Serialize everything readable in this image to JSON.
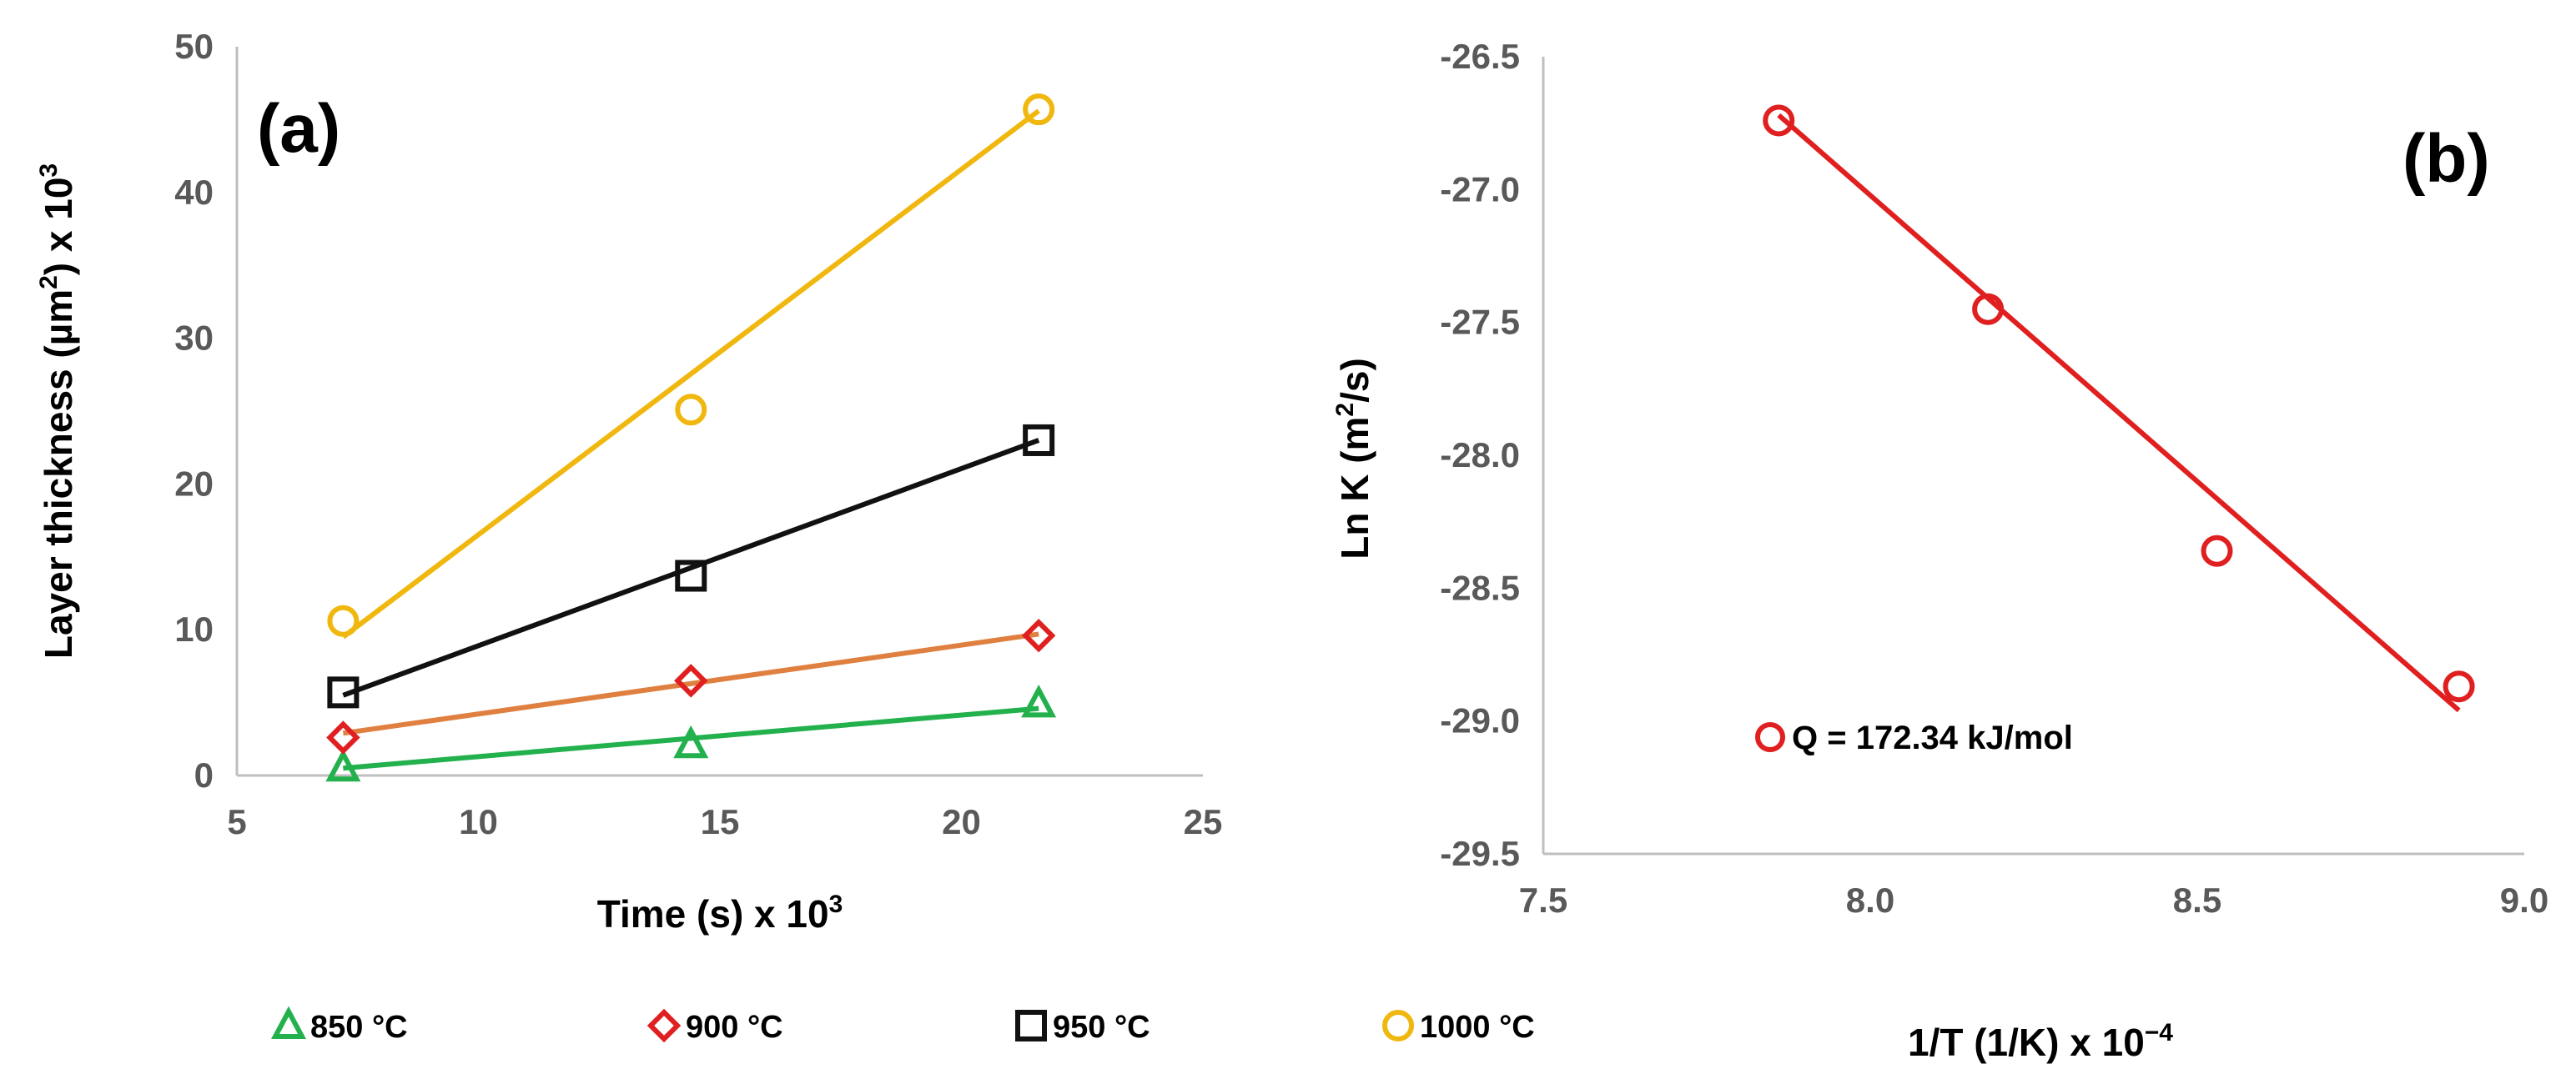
{
  "chart_data": [
    {
      "panel_label": "(a)",
      "type": "scatter",
      "title": "",
      "xlabel": "Time (s) x 10",
      "xlabel_sup": "3",
      "ylabel_pre": "Layer thickness (µm",
      "ylabel_sup1": "2",
      "ylabel_mid": ") x 10",
      "ylabel_sup2": "3",
      "xlim": [
        5,
        25
      ],
      "ylim": [
        0,
        50
      ],
      "xticks": [
        "5",
        "10",
        "15",
        "20",
        "25"
      ],
      "yticks": [
        "0",
        "10",
        "20",
        "30",
        "40",
        "50"
      ],
      "legend_position": "bottom",
      "series": [
        {
          "name": "850 °C",
          "marker": "triangle",
          "color": "#22b14c",
          "x": [
            7.2,
            14.4,
            21.6
          ],
          "y": [
            0.5,
            2.1,
            4.9
          ],
          "fit": [
            [
              7.2,
              0.5
            ],
            [
              21.6,
              4.6
            ]
          ]
        },
        {
          "name": "900 °C",
          "marker": "diamond",
          "color": "#e02020",
          "line_color": "#e08040",
          "x": [
            7.2,
            14.4,
            21.6
          ],
          "y": [
            2.6,
            6.5,
            9.6
          ],
          "fit": [
            [
              7.2,
              2.9
            ],
            [
              21.6,
              9.7
            ]
          ]
        },
        {
          "name": "950 °C",
          "marker": "square",
          "color": "#111111",
          "x": [
            7.2,
            14.4,
            21.6
          ],
          "y": [
            5.7,
            13.7,
            23.0
          ],
          "fit": [
            [
              7.2,
              5.5
            ],
            [
              21.6,
              23.0
            ]
          ]
        },
        {
          "name": "1000 °C",
          "marker": "circle",
          "color": "#f0b70e",
          "x": [
            7.2,
            14.4,
            21.6
          ],
          "y": [
            10.6,
            25.1,
            45.7
          ],
          "fit": [
            [
              7.2,
              9.5
            ],
            [
              21.6,
              45.6
            ]
          ]
        }
      ]
    },
    {
      "panel_label": "(b)",
      "type": "scatter",
      "title": "",
      "xlabel": "1/T (1/K) x 10",
      "xlabel_sup": "−4",
      "ylabel_pre": "Ln K (m",
      "ylabel_sup": "2",
      "ylabel_post": "/s)",
      "xlim": [
        7.5,
        9.0
      ],
      "ylim": [
        -29.5,
        -26.5
      ],
      "xticks": [
        "7.5",
        "8.0",
        "8.5",
        "9.0"
      ],
      "yticks": [
        "-29.5",
        "-29.0",
        "-28.5",
        "-28.0",
        "-27.5",
        "-27.0",
        "-26.5"
      ],
      "series": [
        {
          "name": "Ln K",
          "marker": "circle",
          "color": "#e02020",
          "x": [
            7.86,
            8.18,
            8.53,
            8.9
          ],
          "y": [
            -26.74,
            -27.45,
            -28.36,
            -28.87
          ],
          "fit": [
            [
              7.86,
              -26.72
            ],
            [
              8.9,
              -28.96
            ]
          ]
        }
      ],
      "annotation": "Q = 172.34 kJ/mol"
    }
  ]
}
